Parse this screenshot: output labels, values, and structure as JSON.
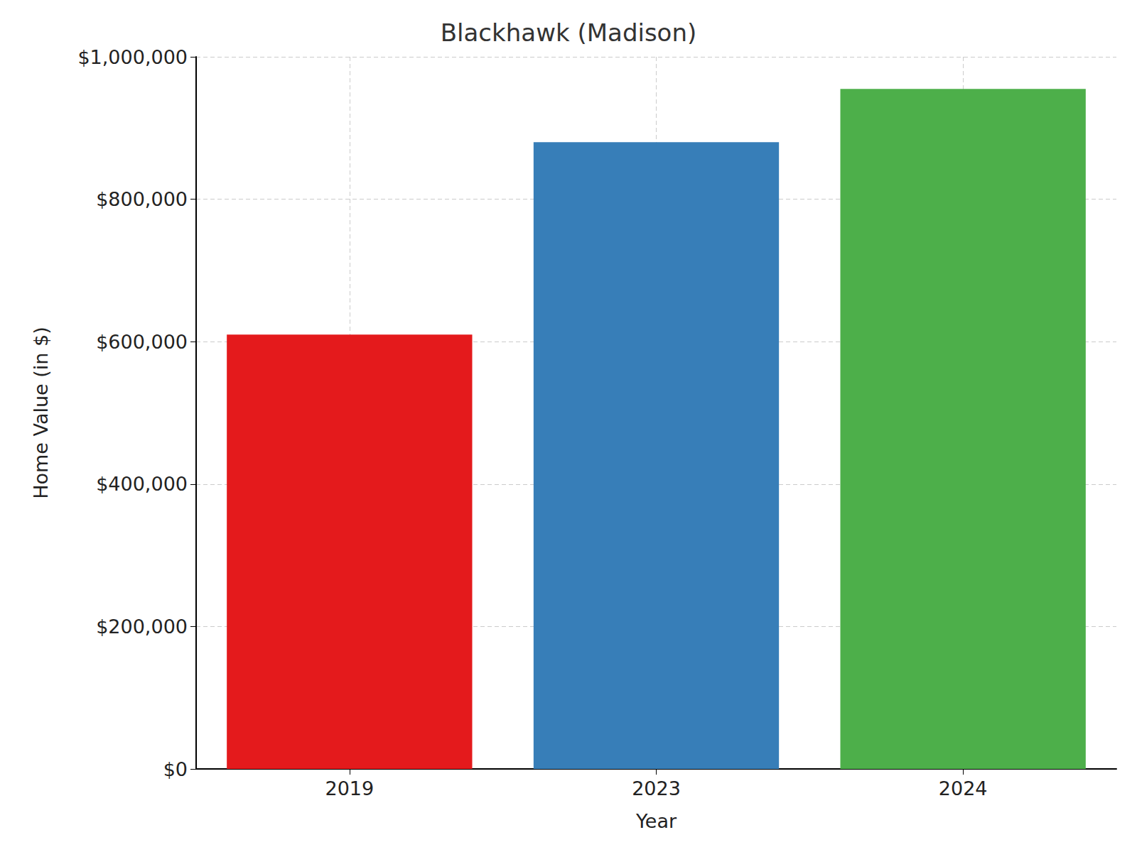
{
  "chart_data": {
    "type": "bar",
    "title": "Blackhawk (Madison)",
    "x_label": "Year",
    "y_label": "Home Value (in $)",
    "categories": [
      "2019",
      "2023",
      "2024"
    ],
    "values": [
      610000,
      880000,
      955000
    ],
    "colors": [
      "#e41a1c",
      "#377eb8",
      "#4daf4a"
    ],
    "ylim": [
      0,
      1000000
    ],
    "yticks": [
      {
        "value": 0,
        "label": "$0"
      },
      {
        "value": 200000,
        "label": "$200,000"
      },
      {
        "value": 400000,
        "label": "$400,000"
      },
      {
        "value": 600000,
        "label": "$600,000"
      },
      {
        "value": 800000,
        "label": "$800,000"
      },
      {
        "value": 1000000,
        "label": "$1,000,000"
      }
    ],
    "grid": true
  }
}
